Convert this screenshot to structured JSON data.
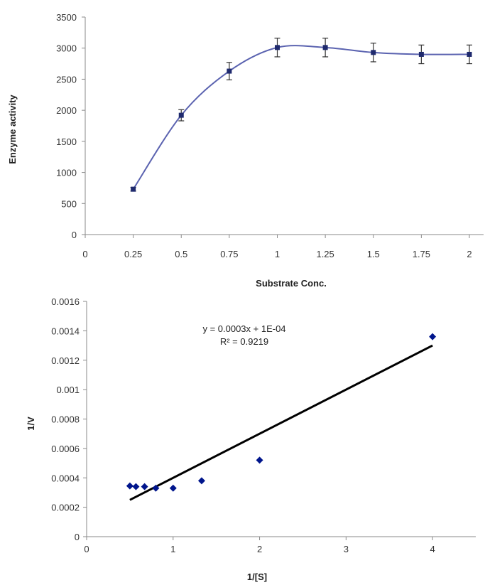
{
  "chart_data": [
    {
      "type": "line",
      "title": "",
      "xlabel": "Substrate Conc.",
      "ylabel": "Enzyme activity",
      "xlim": [
        0,
        2
      ],
      "ylim": [
        0,
        3500
      ],
      "x_ticks": [
        "0",
        "0.25",
        "0.5",
        "0.75",
        "1",
        "1.25",
        "1.5",
        "1.75",
        "2"
      ],
      "y_ticks": [
        "0",
        "500",
        "1000",
        "1500",
        "2000",
        "2500",
        "3000",
        "3500"
      ],
      "grid": false,
      "line_color": "#5b63b0",
      "marker_color": "#1f2a6e",
      "x": [
        0.25,
        0.5,
        0.75,
        1,
        1.25,
        1.5,
        1.75,
        2
      ],
      "y": [
        730,
        1920,
        2630,
        3010,
        3010,
        2930,
        2900,
        2900
      ],
      "error": [
        30,
        90,
        140,
        150,
        150,
        150,
        150,
        150
      ]
    },
    {
      "type": "scatter",
      "title": "",
      "xlabel": "1/[S]",
      "ylabel": "1/V",
      "xlim": [
        0,
        4.5
      ],
      "ylim": [
        0,
        0.0016
      ],
      "x_ticks": [
        "0",
        "1",
        "2",
        "3",
        "4"
      ],
      "y_ticks": [
        "0",
        "0.0002",
        "0.0004",
        "0.0006",
        "0.0008",
        "0.001",
        "0.0012",
        "0.0014",
        "0.0016"
      ],
      "grid": false,
      "marker_color": "#00158c",
      "x": [
        0.5,
        0.57,
        0.67,
        0.8,
        1,
        1.33,
        2,
        4
      ],
      "y": [
        0.000345,
        0.00034,
        0.00034,
        0.00033,
        0.00033,
        0.00038,
        0.00052,
        0.00136
      ],
      "trendline": {
        "x_range": [
          0.5,
          4
        ],
        "slope": 0.0003,
        "intercept": 0.0001,
        "color": "#000000",
        "equation": "y = 0.0003x + 1E-04",
        "r_squared": "R² = 0.9219"
      }
    }
  ]
}
